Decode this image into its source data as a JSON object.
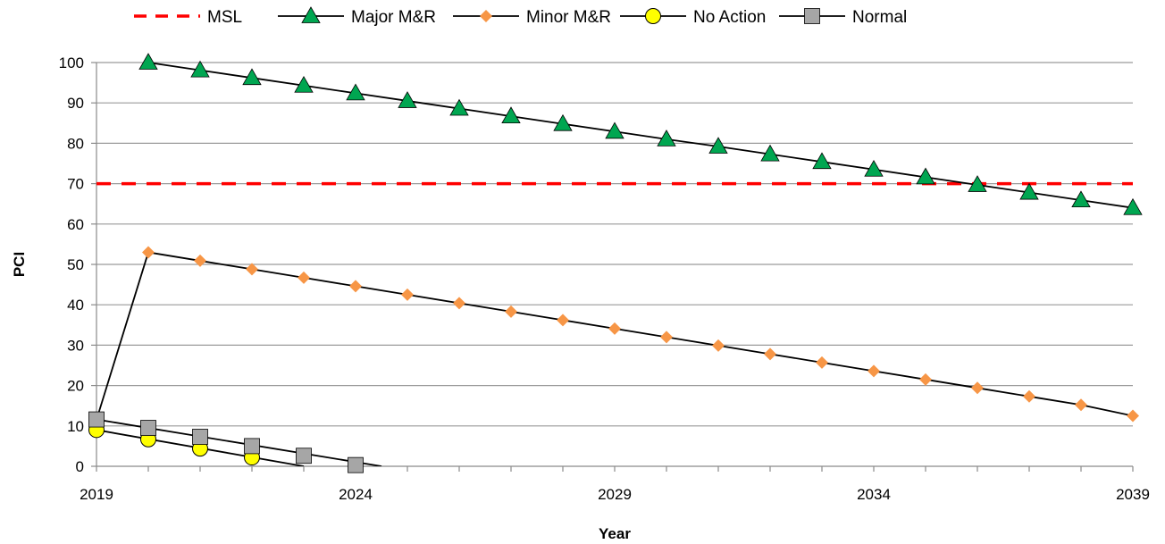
{
  "chart_data": {
    "type": "line",
    "xlabel": "Year",
    "ylabel": "PCI",
    "xlim": [
      2019,
      2039
    ],
    "ylim": [
      0,
      100
    ],
    "x_ticks": [
      2019,
      2024,
      2029,
      2034,
      2039
    ],
    "y_ticks": [
      0,
      10,
      20,
      30,
      40,
      50,
      60,
      70,
      80,
      90,
      100
    ],
    "grid": "horizontal",
    "legend_position": "top",
    "series": [
      {
        "name": "MSL",
        "color": "#ff0000",
        "line_style": "dashed",
        "marker": "none",
        "x": [
          2019,
          2039
        ],
        "y": [
          70,
          70
        ]
      },
      {
        "name": "Major M&R",
        "color": "#000000",
        "marker": "triangle",
        "marker_color": "#00a651",
        "x": [
          2020,
          2021,
          2022,
          2023,
          2024,
          2025,
          2026,
          2027,
          2028,
          2029,
          2030,
          2031,
          2032,
          2033,
          2034,
          2035,
          2036,
          2037,
          2038,
          2039
        ],
        "y": [
          100,
          98.1,
          96.2,
          94.3,
          92.4,
          90.5,
          88.6,
          86.7,
          84.8,
          82.9,
          81.0,
          79.2,
          77.3,
          75.4,
          73.5,
          71.6,
          69.7,
          67.8,
          65.9,
          64.0
        ]
      },
      {
        "name": "Minor M&R",
        "color": "#000000",
        "marker": "diamond",
        "marker_color": "#f79646",
        "x": [
          2019,
          2020,
          2021,
          2022,
          2023,
          2024,
          2025,
          2026,
          2027,
          2028,
          2029,
          2030,
          2031,
          2032,
          2033,
          2034,
          2035,
          2036,
          2037,
          2038,
          2039
        ],
        "y": [
          11.5,
          53.0,
          50.9,
          48.8,
          46.7,
          44.6,
          42.5,
          40.4,
          38.3,
          36.2,
          34.1,
          32.0,
          29.9,
          27.8,
          25.7,
          23.6,
          21.5,
          19.4,
          17.3,
          15.2,
          12.5
        ]
      },
      {
        "name": "No Action",
        "color": "#000000",
        "marker": "circle",
        "marker_color": "#ffff00",
        "x": [
          2019,
          2020,
          2021,
          2022
        ],
        "y": [
          9.0,
          6.7,
          4.4,
          2.2
        ],
        "line_x": [
          2019,
          2023
        ],
        "line_y": [
          9.0,
          0
        ]
      },
      {
        "name": "Normal",
        "color": "#000000",
        "marker": "square",
        "marker_color": "#a6a6a6",
        "x": [
          2019,
          2020,
          2021,
          2022,
          2023,
          2024
        ],
        "y": [
          11.6,
          9.5,
          7.3,
          5.0,
          2.6,
          0.3
        ],
        "line_x": [
          2019,
          2024.5
        ],
        "line_y": [
          11.6,
          0
        ]
      }
    ]
  }
}
